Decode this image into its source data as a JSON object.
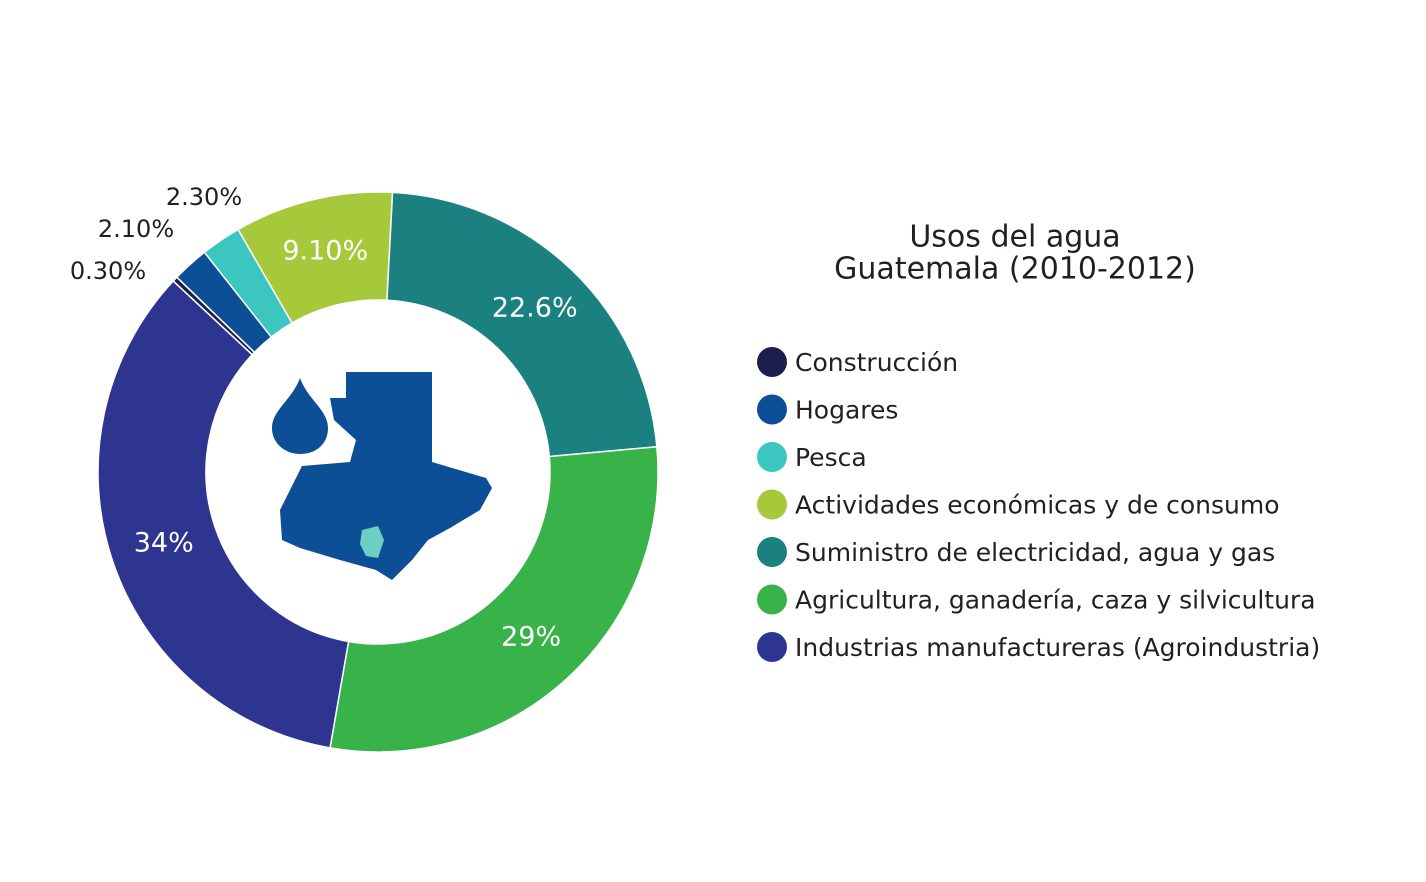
{
  "chart_data": {
    "type": "donut",
    "title": "Usos del agua",
    "subtitle": "Guatemala (2010-2012)",
    "categories": [
      "Construcción",
      "Hogares",
      "Pesca",
      "Actividades económicas y de consumo",
      "Suministro de electricidad, agua y gas",
      "Agricultura, ganadería, caza y silvicultura",
      "Industrias manufactureras (Agroindustria)"
    ],
    "values": [
      0.3,
      2.1,
      2.3,
      9.1,
      22.6,
      29,
      34
    ],
    "value_labels": [
      "0.30%",
      "2.10%",
      "2.30%",
      "9.10%",
      "22.6%",
      "29%",
      "34%"
    ],
    "colors": [
      "#1b1f4d",
      "#0c4f96",
      "#3cc6c0",
      "#a5c93a",
      "#1a8080",
      "#37b34a",
      "#2e3591"
    ]
  }
}
